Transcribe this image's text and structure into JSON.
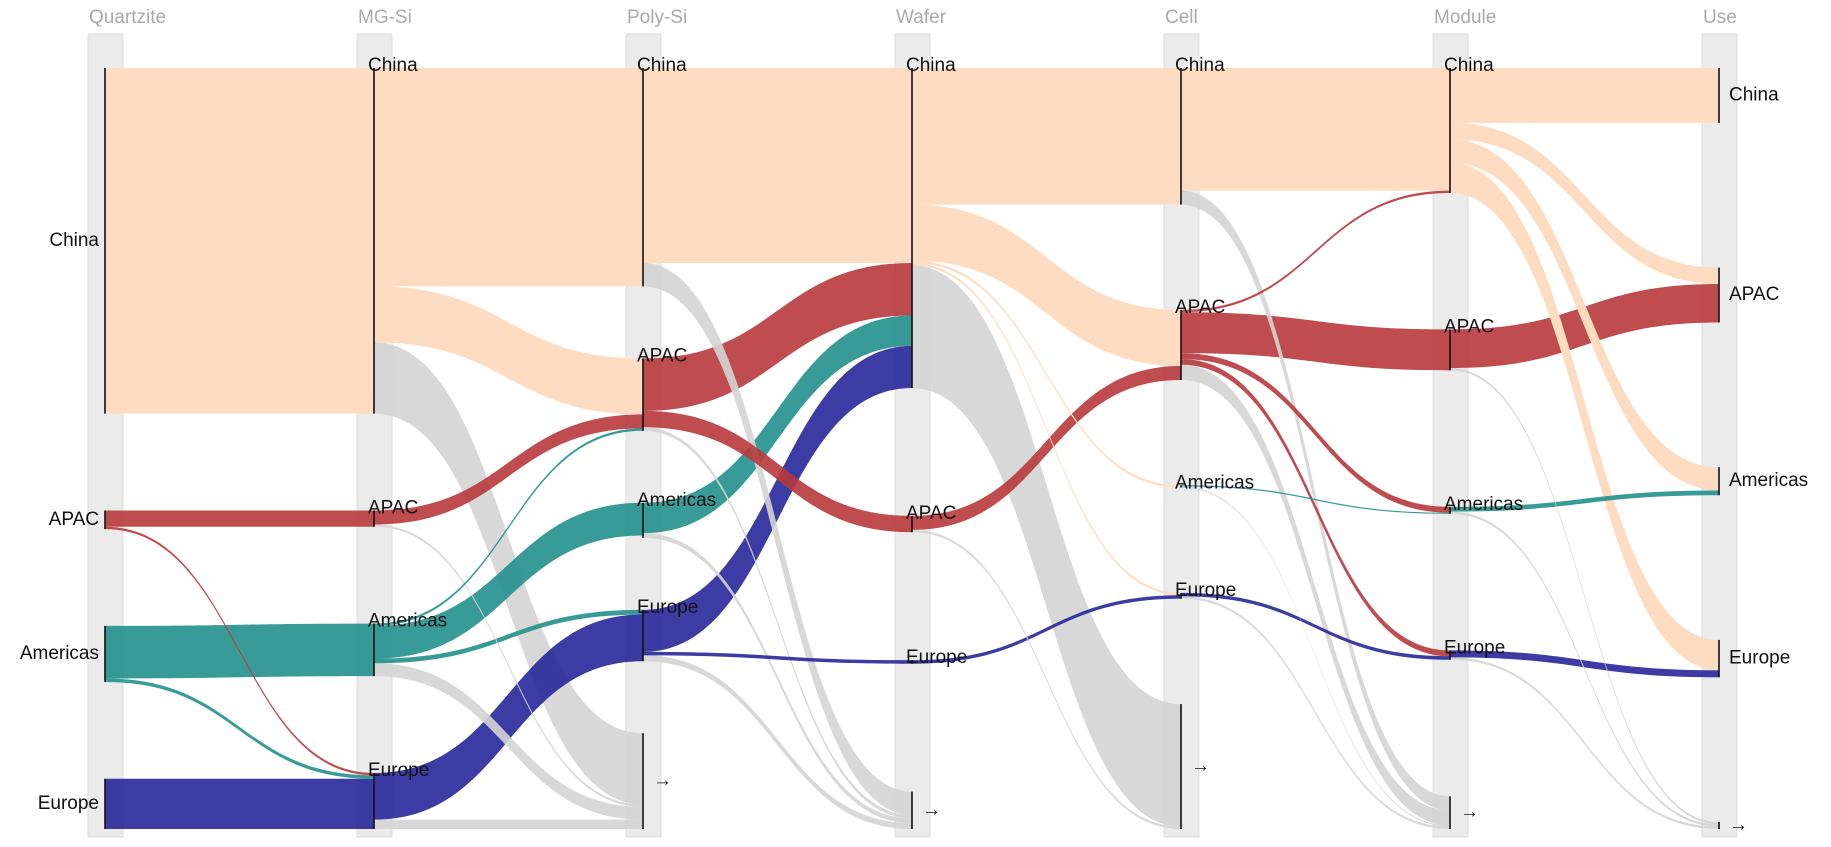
{
  "chart_data": {
    "type": "sankey",
    "stages": [
      "Quartzite",
      "MG-Si",
      "Poly-Si",
      "Wafer",
      "Cell",
      "Module",
      "Use"
    ],
    "colors": {
      "China": "#fddcc2",
      "APAC": "#b83a3c",
      "Americas": "#22908d",
      "Europe": "#27279a",
      "→": "#d4d4d4"
    },
    "nodes": [
      {
        "name": "China",
        "stage": 0
      },
      {
        "name": "APAC",
        "stage": 0
      },
      {
        "name": "Americas",
        "stage": 0
      },
      {
        "name": "Europe",
        "stage": 0
      },
      {
        "name": "China",
        "stage": 1
      },
      {
        "name": "APAC",
        "stage": 1
      },
      {
        "name": "Americas",
        "stage": 1
      },
      {
        "name": "Europe",
        "stage": 1
      },
      {
        "name": "China",
        "stage": 2
      },
      {
        "name": "APAC",
        "stage": 2
      },
      {
        "name": "Americas",
        "stage": 2
      },
      {
        "name": "Europe",
        "stage": 2
      },
      {
        "name": "→",
        "stage": 2
      },
      {
        "name": "China",
        "stage": 3
      },
      {
        "name": "APAC",
        "stage": 3
      },
      {
        "name": "Europe",
        "stage": 3
      },
      {
        "name": "→",
        "stage": 3
      },
      {
        "name": "China",
        "stage": 4
      },
      {
        "name": "APAC",
        "stage": 4
      },
      {
        "name": "Americas",
        "stage": 4
      },
      {
        "name": "Europe",
        "stage": 4
      },
      {
        "name": "→",
        "stage": 4
      },
      {
        "name": "China",
        "stage": 5
      },
      {
        "name": "APAC",
        "stage": 5
      },
      {
        "name": "Americas",
        "stage": 5
      },
      {
        "name": "Europe",
        "stage": 5
      },
      {
        "name": "→",
        "stage": 5
      },
      {
        "name": "China",
        "stage": 6
      },
      {
        "name": "APAC",
        "stage": 6
      },
      {
        "name": "Americas",
        "stage": 6
      },
      {
        "name": "Europe",
        "stage": 6
      },
      {
        "name": "→",
        "stage": 6
      }
    ],
    "links": [
      {
        "source": 0,
        "target": 4,
        "value": 296
      },
      {
        "source": 1,
        "target": 5,
        "value": 14
      },
      {
        "source": 1,
        "target": 7,
        "value": 2
      },
      {
        "source": 2,
        "target": 6,
        "value": 45
      },
      {
        "source": 2,
        "target": 7,
        "value": 3
      },
      {
        "source": 3,
        "target": 7,
        "value": 43
      },
      {
        "source": 4,
        "target": 8,
        "value": 187
      },
      {
        "source": 4,
        "target": 9,
        "value": 48
      },
      {
        "source": 4,
        "target": 12,
        "value": 61
      },
      {
        "source": 5,
        "target": 9,
        "value": 12
      },
      {
        "source": 5,
        "target": 12,
        "value": 2
      },
      {
        "source": 6,
        "target": 9,
        "value": 2
      },
      {
        "source": 6,
        "target": 10,
        "value": 28
      },
      {
        "source": 6,
        "target": 11,
        "value": 4
      },
      {
        "source": 6,
        "target": 12,
        "value": 11
      },
      {
        "source": 7,
        "target": 11,
        "value": 40
      },
      {
        "source": 7,
        "target": 12,
        "value": 8
      },
      {
        "source": 8,
        "target": 13,
        "value": 167
      },
      {
        "source": 8,
        "target": 16,
        "value": 20
      },
      {
        "source": 9,
        "target": 13,
        "value": 45
      },
      {
        "source": 9,
        "target": 14,
        "value": 14
      },
      {
        "source": 9,
        "target": 16,
        "value": 3
      },
      {
        "source": 10,
        "target": 13,
        "value": 26
      },
      {
        "source": 10,
        "target": 16,
        "value": 4
      },
      {
        "source": 11,
        "target": 13,
        "value": 36
      },
      {
        "source": 11,
        "target": 15,
        "value": 3
      },
      {
        "source": 11,
        "target": 16,
        "value": 5
      },
      {
        "source": 13,
        "target": 17,
        "value": 117
      },
      {
        "source": 13,
        "target": 18,
        "value": 48
      },
      {
        "source": 13,
        "target": 19,
        "value": 2
      },
      {
        "source": 13,
        "target": 20,
        "value": 2
      },
      {
        "source": 13,
        "target": 21,
        "value": 105
      },
      {
        "source": 14,
        "target": 18,
        "value": 12
      },
      {
        "source": 14,
        "target": 21,
        "value": 2
      },
      {
        "source": 15,
        "target": 20,
        "value": 3
      },
      {
        "source": 17,
        "target": 22,
        "value": 105
      },
      {
        "source": 17,
        "target": 26,
        "value": 12
      },
      {
        "source": 18,
        "target": 22,
        "value": 2
      },
      {
        "source": 18,
        "target": 23,
        "value": 35
      },
      {
        "source": 18,
        "target": 24,
        "value": 5
      },
      {
        "source": 18,
        "target": 25,
        "value": 5
      },
      {
        "source": 18,
        "target": 26,
        "value": 13
      },
      {
        "source": 19,
        "target": 24,
        "value": 1
      },
      {
        "source": 19,
        "target": 26,
        "value": 1
      },
      {
        "source": 20,
        "target": 25,
        "value": 3
      },
      {
        "source": 20,
        "target": 26,
        "value": 2
      },
      {
        "source": 22,
        "target": 27,
        "value": 47
      },
      {
        "source": 22,
        "target": 28,
        "value": 14
      },
      {
        "source": 22,
        "target": 29,
        "value": 20
      },
      {
        "source": 22,
        "target": 30,
        "value": 26
      },
      {
        "source": 23,
        "target": 28,
        "value": 33
      },
      {
        "source": 23,
        "target": 31,
        "value": 2
      },
      {
        "source": 24,
        "target": 29,
        "value": 4
      },
      {
        "source": 24,
        "target": 31,
        "value": 2
      },
      {
        "source": 25,
        "target": 30,
        "value": 6
      },
      {
        "source": 25,
        "target": 31,
        "value": 2
      }
    ]
  }
}
